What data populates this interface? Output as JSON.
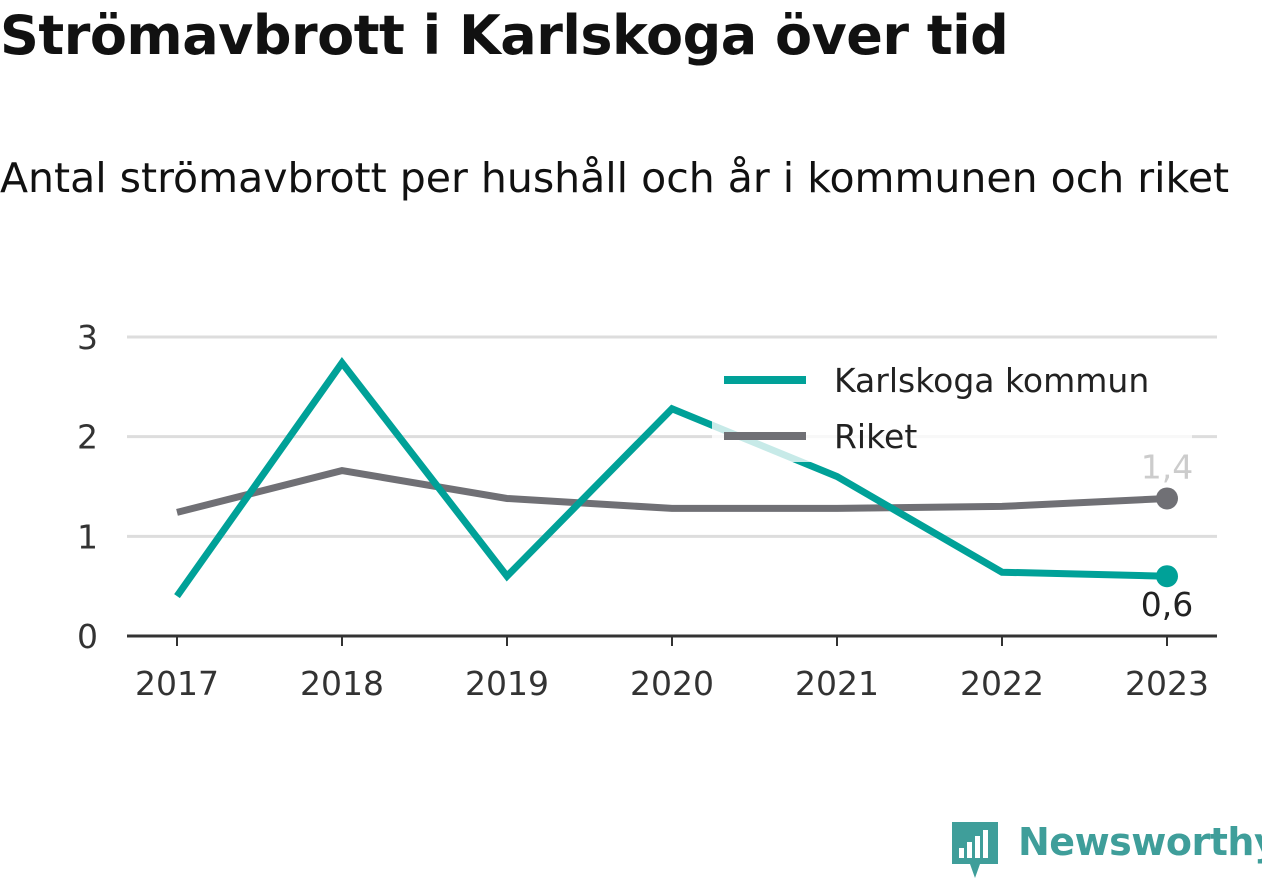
{
  "chart_data": {
    "type": "line",
    "title": "Strömavbrott i Karlskoga över tid",
    "subtitle": "Antal strömavbrott per hushåll och år i kommunen och riket",
    "x": [
      "2017",
      "2018",
      "2019",
      "2020",
      "2021",
      "2022",
      "2023"
    ],
    "ylim": [
      0,
      3
    ],
    "yticks": [
      "0",
      "1",
      "2",
      "3"
    ],
    "grid": true,
    "legend_position": "top-right",
    "series": [
      {
        "name": "Karlskoga kommun",
        "color": "#00a198",
        "values": [
          0.4,
          2.74,
          0.6,
          2.28,
          1.6,
          0.64,
          0.6
        ],
        "end_label": "0,6"
      },
      {
        "name": "Riket",
        "color": "#707075",
        "values": [
          1.24,
          1.66,
          1.38,
          1.28,
          1.28,
          1.3,
          1.38
        ],
        "end_label": "1,4"
      }
    ]
  },
  "branding": {
    "name": "Newsworthy",
    "icon": "newsworthy-logo-icon",
    "color": "#3f9e9a"
  }
}
